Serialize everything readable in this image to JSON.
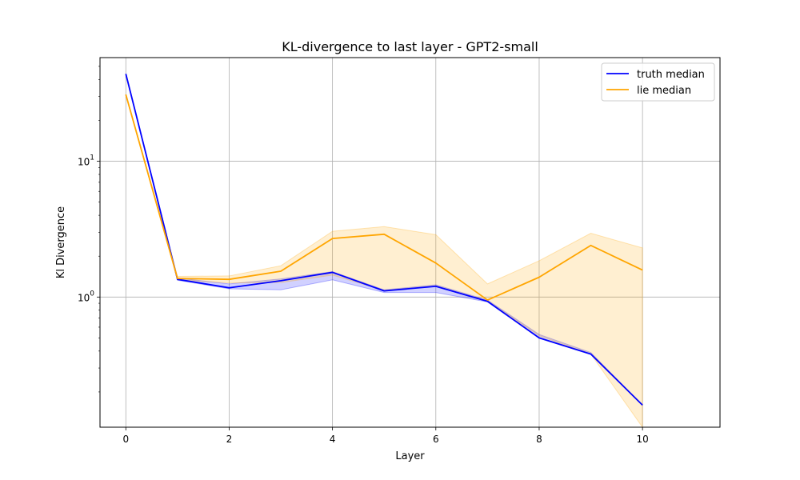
{
  "chart_data": {
    "type": "line",
    "title": "KL-divergence to last layer - GPT2-small",
    "xlabel": "Layer",
    "ylabel": "Kl Divergence",
    "xlim": [
      -0.5,
      11.5
    ],
    "ylim": [
      0.11,
      58
    ],
    "yscale": "log",
    "grid": true,
    "legend_position": "top-right",
    "x_ticks": [
      0,
      2,
      4,
      6,
      8,
      10
    ],
    "x_tick_labels": [
      "0",
      "2",
      "4",
      "6",
      "8",
      "10"
    ],
    "y_ticks": [
      1,
      10
    ],
    "y_tick_labels": [
      "10^0",
      "10^1"
    ],
    "x": [
      0,
      1,
      2,
      3,
      4,
      5,
      6,
      7,
      8,
      9,
      10
    ],
    "series": [
      {
        "name": "truth median",
        "color": "#0000ff",
        "values": [
          44,
          1.35,
          1.17,
          1.32,
          1.52,
          1.11,
          1.2,
          0.93,
          0.5,
          0.38,
          0.16
        ],
        "band_lower": [
          44,
          1.33,
          1.15,
          1.13,
          1.34,
          1.08,
          1.08,
          0.92,
          0.5,
          0.38,
          0.16
        ],
        "band_upper": [
          44,
          1.38,
          1.25,
          1.36,
          1.54,
          1.13,
          1.23,
          0.95,
          0.53,
          0.39,
          0.16
        ],
        "band_color": "#0000ff"
      },
      {
        "name": "lie median",
        "color": "#ffa500",
        "values": [
          31,
          1.37,
          1.35,
          1.55,
          2.7,
          2.9,
          1.78,
          0.95,
          1.4,
          2.4,
          1.58
        ],
        "band_lower": [
          31,
          1.34,
          1.27,
          1.28,
          1.45,
          1.12,
          1.2,
          0.93,
          0.52,
          0.38,
          0.11
        ],
        "band_upper": [
          31,
          1.42,
          1.43,
          1.7,
          3.05,
          3.3,
          2.88,
          1.25,
          1.85,
          2.95,
          2.3
        ],
        "band_color": "#ffa500"
      }
    ]
  }
}
